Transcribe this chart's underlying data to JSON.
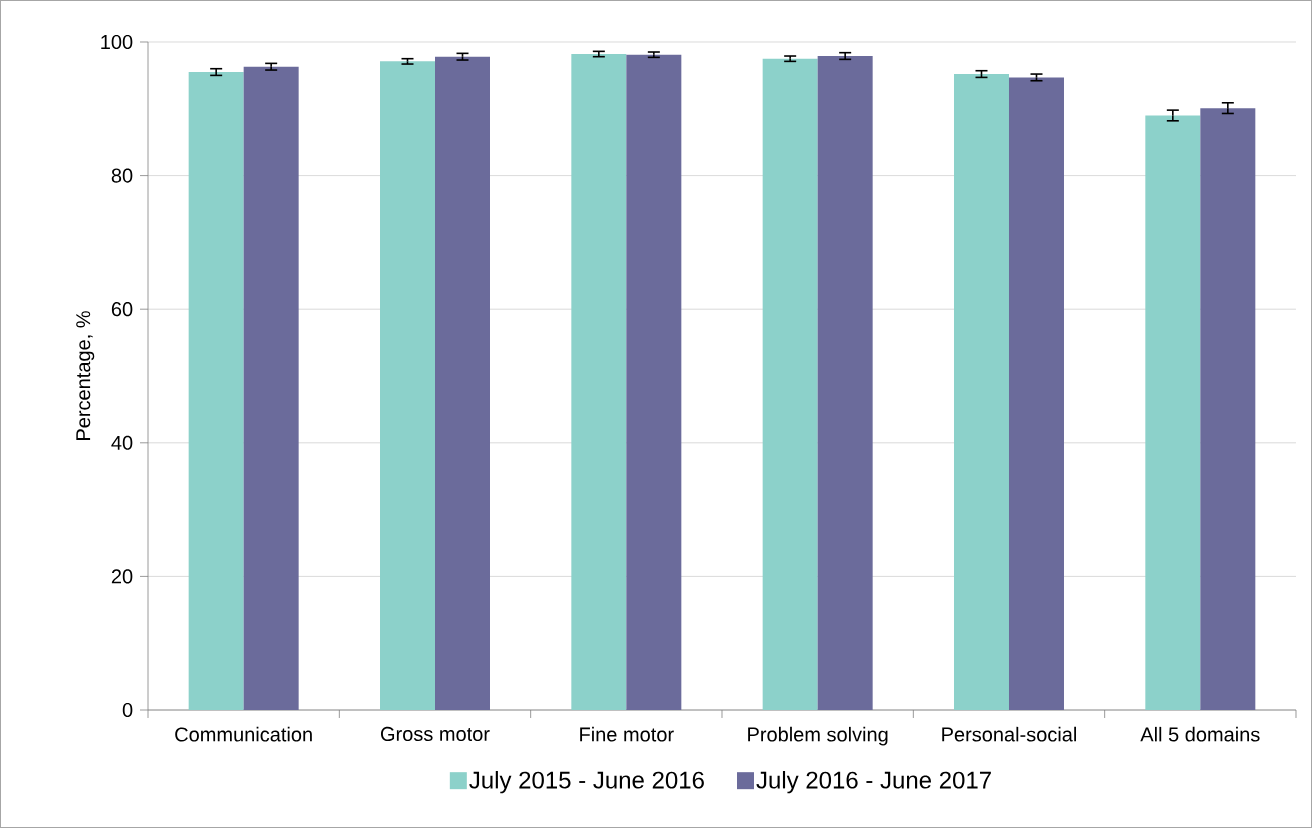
{
  "chart_data": {
    "type": "bar",
    "ylabel": "Percentage, %",
    "categories": [
      "Communication",
      "Gross motor",
      "Fine motor",
      "Problem solving",
      "Personal-social",
      "All 5 domains"
    ],
    "series": [
      {
        "name": "July 2015 - June 2016",
        "color": "#8cd1ca",
        "values": [
          95.5,
          97.1,
          98.2,
          97.5,
          95.2,
          89.0
        ],
        "errors": [
          0.5,
          0.4,
          0.4,
          0.4,
          0.5,
          0.8
        ]
      },
      {
        "name": "July 2016 - June 2017",
        "color": "#6b6b9b",
        "values": [
          96.3,
          97.8,
          98.1,
          97.9,
          94.7,
          90.1
        ],
        "errors": [
          0.5,
          0.5,
          0.4,
          0.5,
          0.5,
          0.8
        ]
      }
    ],
    "ylim": [
      0,
      100
    ],
    "yticks": [
      0,
      20,
      40,
      60,
      80,
      100
    ],
    "grid": "y",
    "legend": "bottom"
  }
}
